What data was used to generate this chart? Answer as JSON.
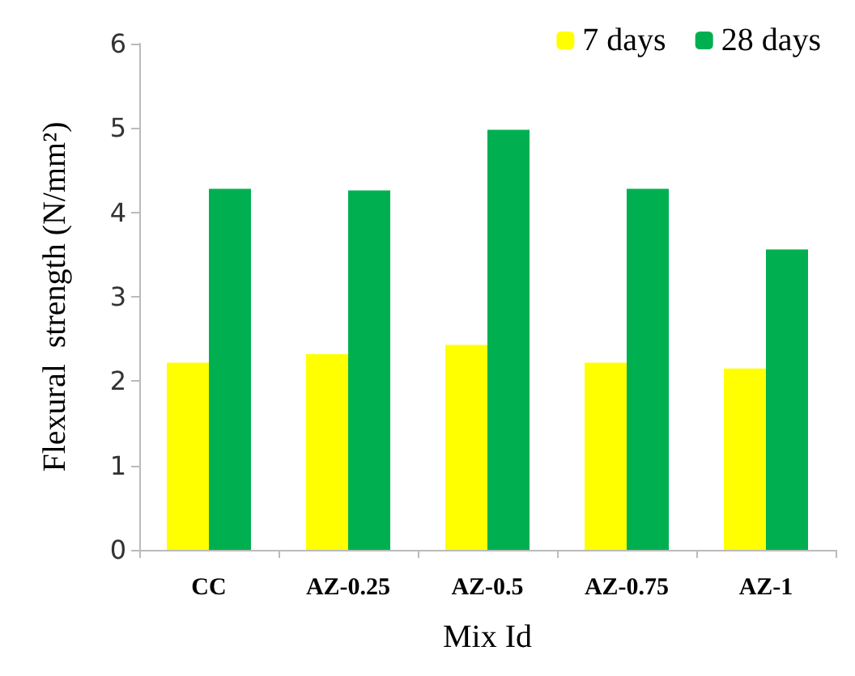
{
  "chart_data": {
    "type": "bar",
    "xlabel": "Mix Id",
    "ylabel": "Flexural  strength (N/mm²)",
    "categories": [
      "CC",
      "AZ-0.25",
      "AZ-0.5",
      "AZ-0.75",
      "AZ-1"
    ],
    "series": [
      {
        "name": "7 days",
        "color": "#ffff00",
        "values": [
          2.22,
          2.32,
          2.43,
          2.22,
          2.15
        ]
      },
      {
        "name": "28 days",
        "color": "#00b050",
        "values": [
          4.28,
          4.26,
          4.98,
          4.28,
          3.56
        ]
      }
    ],
    "ylim": [
      0,
      6
    ],
    "yticks": [
      0,
      1,
      2,
      3,
      4,
      5,
      6
    ],
    "grid": false,
    "legend": "top right"
  }
}
